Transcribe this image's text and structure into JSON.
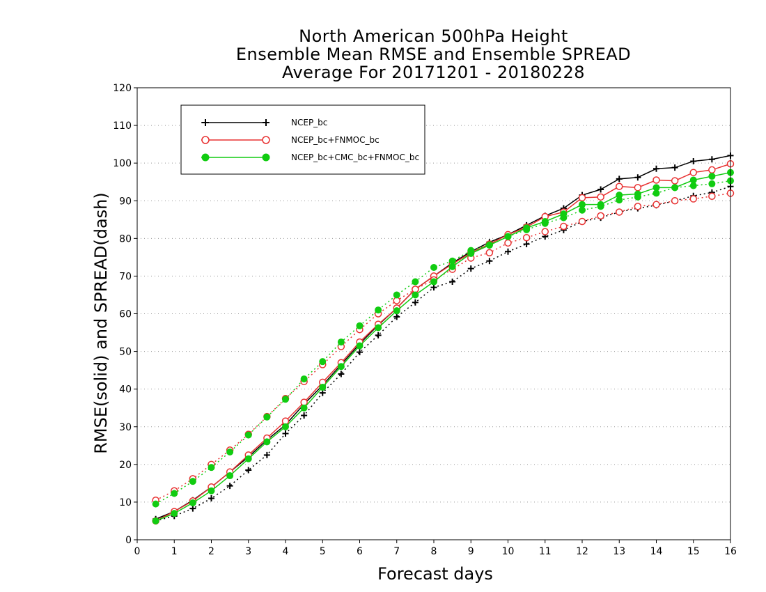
{
  "chart_data": {
    "type": "line",
    "title_lines": [
      "North American 500hPa Height",
      "Ensemble Mean RMSE and Ensemble SPREAD",
      "Average For 20171201 - 20180228"
    ],
    "xlabel": "Forecast days",
    "ylabel": "RMSE(solid) and SPREAD(dash)",
    "xlim": [
      0,
      16
    ],
    "ylim": [
      0,
      120
    ],
    "xticks": [
      0,
      1,
      2,
      3,
      4,
      5,
      6,
      7,
      8,
      9,
      10,
      11,
      12,
      13,
      14,
      15,
      16
    ],
    "yticks": [
      0,
      10,
      20,
      30,
      40,
      50,
      60,
      70,
      80,
      90,
      100,
      110,
      120
    ],
    "grid": "dotted horizontal",
    "legend_position": "top-left",
    "x": [
      0.5,
      1,
      1.5,
      2,
      2.5,
      3,
      3.5,
      4,
      4.5,
      5,
      5.5,
      6,
      6.5,
      7,
      7.5,
      8,
      8.5,
      9,
      9.5,
      10,
      10.5,
      11,
      11.5,
      12,
      12.5,
      13,
      13.5,
      14,
      14.5,
      15,
      15.5,
      16
    ],
    "series": [
      {
        "name": "NCEP_bc",
        "color": "#000000",
        "marker": "plus",
        "rmse": [
          5.5,
          7.5,
          10.5,
          14,
          18,
          22,
          26.5,
          30.5,
          36,
          41,
          46.5,
          52,
          57,
          61.5,
          66.5,
          70,
          73.5,
          76.5,
          79,
          81,
          83.5,
          86,
          88,
          91.5,
          93,
          95.8,
          96.2,
          98.5,
          98.8,
          100.5,
          101,
          102
        ],
        "spread": [
          5,
          6.3,
          8.3,
          11,
          14.3,
          18.5,
          22.5,
          28.2,
          33,
          39,
          44,
          49.8,
          54.3,
          59.2,
          63,
          67,
          68.5,
          72,
          74,
          76.5,
          78.5,
          80.5,
          82.2,
          84.5,
          85.5,
          87,
          88,
          88.8,
          90,
          91.3,
          92.2,
          93.8
        ]
      },
      {
        "name": "NCEP_bc+FNMOC_bc",
        "color": "#e83030",
        "marker": "open-circle",
        "rmse": [
          5,
          7.5,
          10.3,
          14,
          18,
          22.5,
          27,
          31.5,
          36.5,
          41.8,
          47,
          52.5,
          57.2,
          61.5,
          66.5,
          70,
          73.2,
          76.2,
          78.5,
          81,
          83,
          85.8,
          87,
          90.8,
          91,
          93.8,
          93.5,
          95.5,
          95.3,
          97.5,
          98.2,
          99.8
        ],
        "spread": [
          10.5,
          13,
          16.2,
          20,
          23.8,
          28,
          32.7,
          37.5,
          42,
          46.5,
          51.3,
          55.8,
          60,
          63.5,
          66.5,
          69,
          71.8,
          74.8,
          76.2,
          78.8,
          80.2,
          81.8,
          83.2,
          84.5,
          86,
          87,
          88.5,
          89,
          90,
          90.5,
          91.2,
          92
        ]
      },
      {
        "name": "NCEP_bc+CMC_bc+FNMOC_bc",
        "color": "#11cc11",
        "marker": "filled-circle",
        "rmse": [
          5,
          7,
          9.8,
          13,
          17,
          21.5,
          26,
          30,
          35,
          40.5,
          46,
          51.5,
          56.3,
          60.8,
          65,
          68.5,
          72.5,
          76,
          78.2,
          80.5,
          82.8,
          84.5,
          86.5,
          89,
          89,
          91.5,
          91.8,
          93.5,
          93.5,
          95.5,
          96.5,
          97.5
        ],
        "spread": [
          9.5,
          12.3,
          15.5,
          19.2,
          23.3,
          27.8,
          32.6,
          37.3,
          42.7,
          47.3,
          52.5,
          56.8,
          61,
          65,
          68.5,
          72.3,
          74,
          76.8,
          78.3,
          80.5,
          82.3,
          84,
          85.5,
          87.5,
          88.5,
          90.2,
          91,
          92,
          93.5,
          94,
          94.5,
          95.3
        ]
      }
    ]
  }
}
